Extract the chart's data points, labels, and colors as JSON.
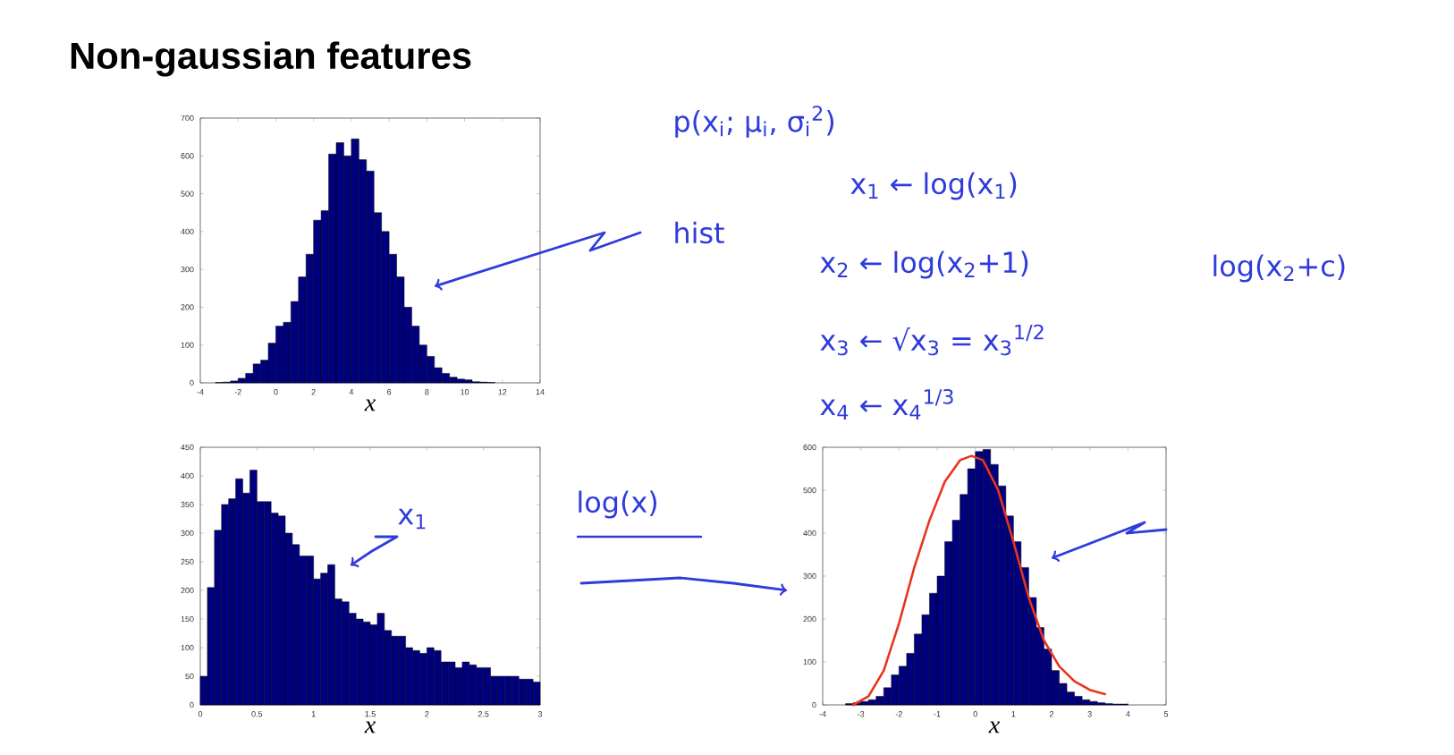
{
  "chart_data": [
    {
      "type": "histogram",
      "title": "Non-gaussian features",
      "xlabel": "x",
      "color": "#00007f",
      "bins": [
        -3.2,
        -2.8,
        -2.4,
        -2.0,
        -1.6,
        -1.2,
        -0.8,
        -0.4,
        0.0,
        0.4,
        0.8,
        1.2,
        1.6,
        2.0,
        2.4,
        2.8,
        3.2,
        3.6,
        4.0,
        4.4,
        4.8,
        5.2,
        5.6,
        6.0,
        6.4,
        6.8,
        7.2,
        7.6,
        8.0,
        8.4,
        8.8,
        9.2,
        9.6,
        10.0,
        10.4,
        10.8,
        11.2,
        11.6
      ],
      "values": [
        1,
        2,
        5,
        12,
        25,
        50,
        60,
        105,
        150,
        160,
        215,
        280,
        340,
        430,
        455,
        605,
        635,
        600,
        645,
        590,
        560,
        450,
        400,
        340,
        280,
        200,
        150,
        100,
        70,
        40,
        25,
        15,
        10,
        8,
        3,
        2,
        1
      ],
      "xlim": [
        -4,
        14
      ],
      "ylim": [
        0,
        700
      ],
      "xticks": [
        -4,
        -2,
        0,
        2,
        4,
        6,
        8,
        10,
        12,
        14
      ],
      "yticks": [
        0,
        100,
        200,
        300,
        400,
        500,
        600,
        700
      ],
      "annotations": [
        "hist",
        "p(x$_{i}$; μ$_{i}$, σ$_{i}$$^{2}$)",
        "x$_{1}$ ← log(x$_{1}$)",
        "x$_{2}$ ← log(x$_{2}$+1)",
        "log(x$_{2}$+c)",
        "x$_{3}$ ← √x$_{3}$ = x$_{3}$$^{1/2}$",
        "x$_{4}$ ← x$_{4}$$^{1/3}$"
      ]
    },
    {
      "type": "histogram",
      "xlabel": "x",
      "color": "#00007f",
      "bins": [
        0,
        0.0625,
        0.125,
        0.1875,
        0.25,
        0.3125,
        0.375,
        0.4375,
        0.5,
        0.5625,
        0.625,
        0.6875,
        0.75,
        0.8125,
        0.875,
        0.9375,
        1.0,
        1.0625,
        1.125,
        1.1875,
        1.25,
        1.3125,
        1.375,
        1.4375,
        1.5,
        1.5625,
        1.625,
        1.6875,
        1.75,
        1.8125,
        1.875,
        1.9375,
        2.0,
        2.0625,
        2.125,
        2.1875,
        2.25,
        2.3125,
        2.375,
        2.4375,
        2.5,
        2.5625,
        2.625,
        2.6875,
        2.75,
        2.8125,
        2.875,
        2.9375,
        3.0
      ],
      "values": [
        50,
        205,
        305,
        350,
        360,
        395,
        370,
        410,
        355,
        355,
        335,
        330,
        300,
        280,
        260,
        260,
        220,
        230,
        245,
        185,
        180,
        160,
        150,
        145,
        140,
        160,
        130,
        120,
        120,
        100,
        95,
        90,
        100,
        95,
        75,
        75,
        65,
        75,
        70,
        65,
        65,
        50,
        50,
        50,
        50,
        45,
        45,
        40
      ],
      "xlim": [
        0,
        3
      ],
      "ylim": [
        0,
        450
      ],
      "xticks": [
        0,
        0.5,
        1,
        1.5,
        2,
        2.5,
        3
      ],
      "yticks": [
        0,
        50,
        100,
        150,
        200,
        250,
        300,
        350,
        400,
        450
      ],
      "annotations": [
        "x$_{1}$"
      ]
    },
    {
      "type": "histogram",
      "xlabel": "x",
      "color": "#00007f",
      "bins": [
        -3.4,
        -3.2,
        -3.0,
        -2.8,
        -2.6,
        -2.4,
        -2.2,
        -2.0,
        -1.8,
        -1.6,
        -1.4,
        -1.2,
        -1.0,
        -0.8,
        -0.6,
        -0.4,
        -0.2,
        0.0,
        0.2,
        0.4,
        0.6,
        0.8,
        1.0,
        1.2,
        1.4,
        1.6,
        1.8,
        2.0,
        2.2,
        2.4,
        2.6,
        2.8,
        3.0,
        3.2,
        3.4,
        3.6,
        3.8,
        4.0
      ],
      "values": [
        3,
        5,
        8,
        12,
        20,
        40,
        70,
        90,
        120,
        165,
        210,
        260,
        300,
        380,
        430,
        490,
        550,
        590,
        595,
        560,
        510,
        440,
        380,
        320,
        250,
        180,
        130,
        80,
        50,
        30,
        20,
        12,
        8,
        5,
        3,
        2,
        2
      ],
      "series": [
        {
          "type": "line",
          "color": "#e8341c",
          "x": [
            -3.2,
            -2.8,
            -2.4,
            -2.0,
            -1.6,
            -1.2,
            -0.8,
            -0.4,
            -0.1,
            0.2,
            0.6,
            1.0,
            1.4,
            1.8,
            2.2,
            2.6,
            3.0,
            3.4
          ],
          "values": [
            0,
            20,
            80,
            190,
            320,
            430,
            520,
            570,
            580,
            570,
            500,
            380,
            250,
            150,
            90,
            55,
            35,
            25
          ]
        }
      ],
      "xlim": [
        -4,
        5
      ],
      "ylim": [
        0,
        600
      ],
      "xticks": [
        -4,
        -3,
        -2,
        -1,
        0,
        1,
        2,
        3,
        4,
        5
      ],
      "yticks": [
        0,
        100,
        200,
        300,
        400,
        500,
        600
      ],
      "annotations": [
        "log(x)"
      ]
    }
  ]
}
